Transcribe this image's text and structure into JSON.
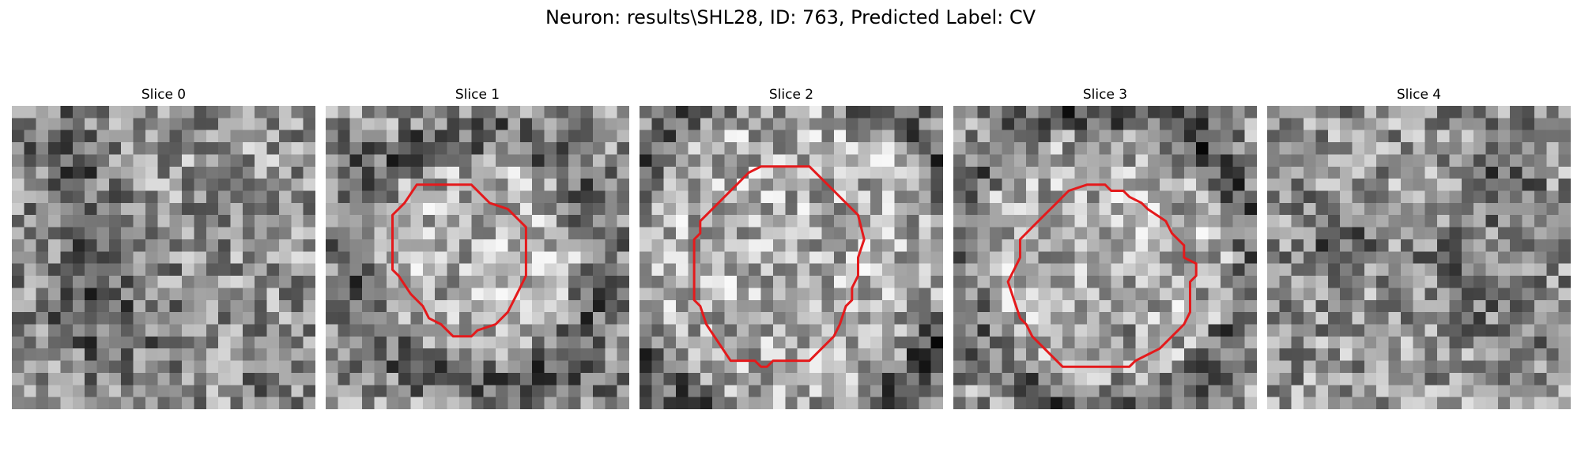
{
  "figure": {
    "title": "Neuron: results\\SHL28, ID: 763, Predicted Label: CV"
  },
  "slices": [
    {
      "label": "Slice 0",
      "has_contour": false
    },
    {
      "label": "Slice 1",
      "has_contour": true
    },
    {
      "label": "Slice 2",
      "has_contour": true
    },
    {
      "label": "Slice 3",
      "has_contour": true
    },
    {
      "label": "Slice 4",
      "has_contour": false
    }
  ],
  "colors": {
    "contour": "#e41a1c",
    "background": "#ffffff"
  }
}
